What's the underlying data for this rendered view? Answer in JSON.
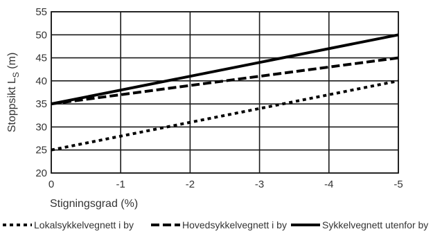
{
  "chart_data": {
    "type": "line",
    "xlabel": "Stigningsgrad (%)",
    "ylabel_main": "Stoppsikt L",
    "ylabel_sub": "S",
    "ylabel_unit": " (m)",
    "x_ticks": [
      0,
      -1,
      -2,
      -3,
      -4,
      -5
    ],
    "x_tick_labels": [
      "0",
      "-1",
      "-2",
      "-3",
      "-4",
      "-5"
    ],
    "y_ticks": [
      20,
      25,
      30,
      35,
      40,
      45,
      50,
      55
    ],
    "y_tick_labels": [
      "20",
      "25",
      "30",
      "35",
      "40",
      "45",
      "50",
      "55"
    ],
    "xlim": [
      0,
      -5
    ],
    "ylim": [
      20,
      55
    ],
    "grid": true,
    "legend_position": "bottom",
    "series": [
      {
        "name": "Lokalsykkelvegnett i by",
        "style": "dotted-dash",
        "x": [
          0,
          -5
        ],
        "y": [
          25,
          40
        ]
      },
      {
        "name": "Hovedsykkelvegnett i by",
        "style": "dashed",
        "x": [
          0,
          -5
        ],
        "y": [
          35,
          45
        ]
      },
      {
        "name": "Sykkelvegnett utenfor by",
        "style": "solid",
        "x": [
          0,
          -5
        ],
        "y": [
          35,
          50
        ]
      }
    ],
    "colors": {
      "line": "#000000",
      "grid": "#1a1a1a",
      "text": "#333333"
    }
  }
}
